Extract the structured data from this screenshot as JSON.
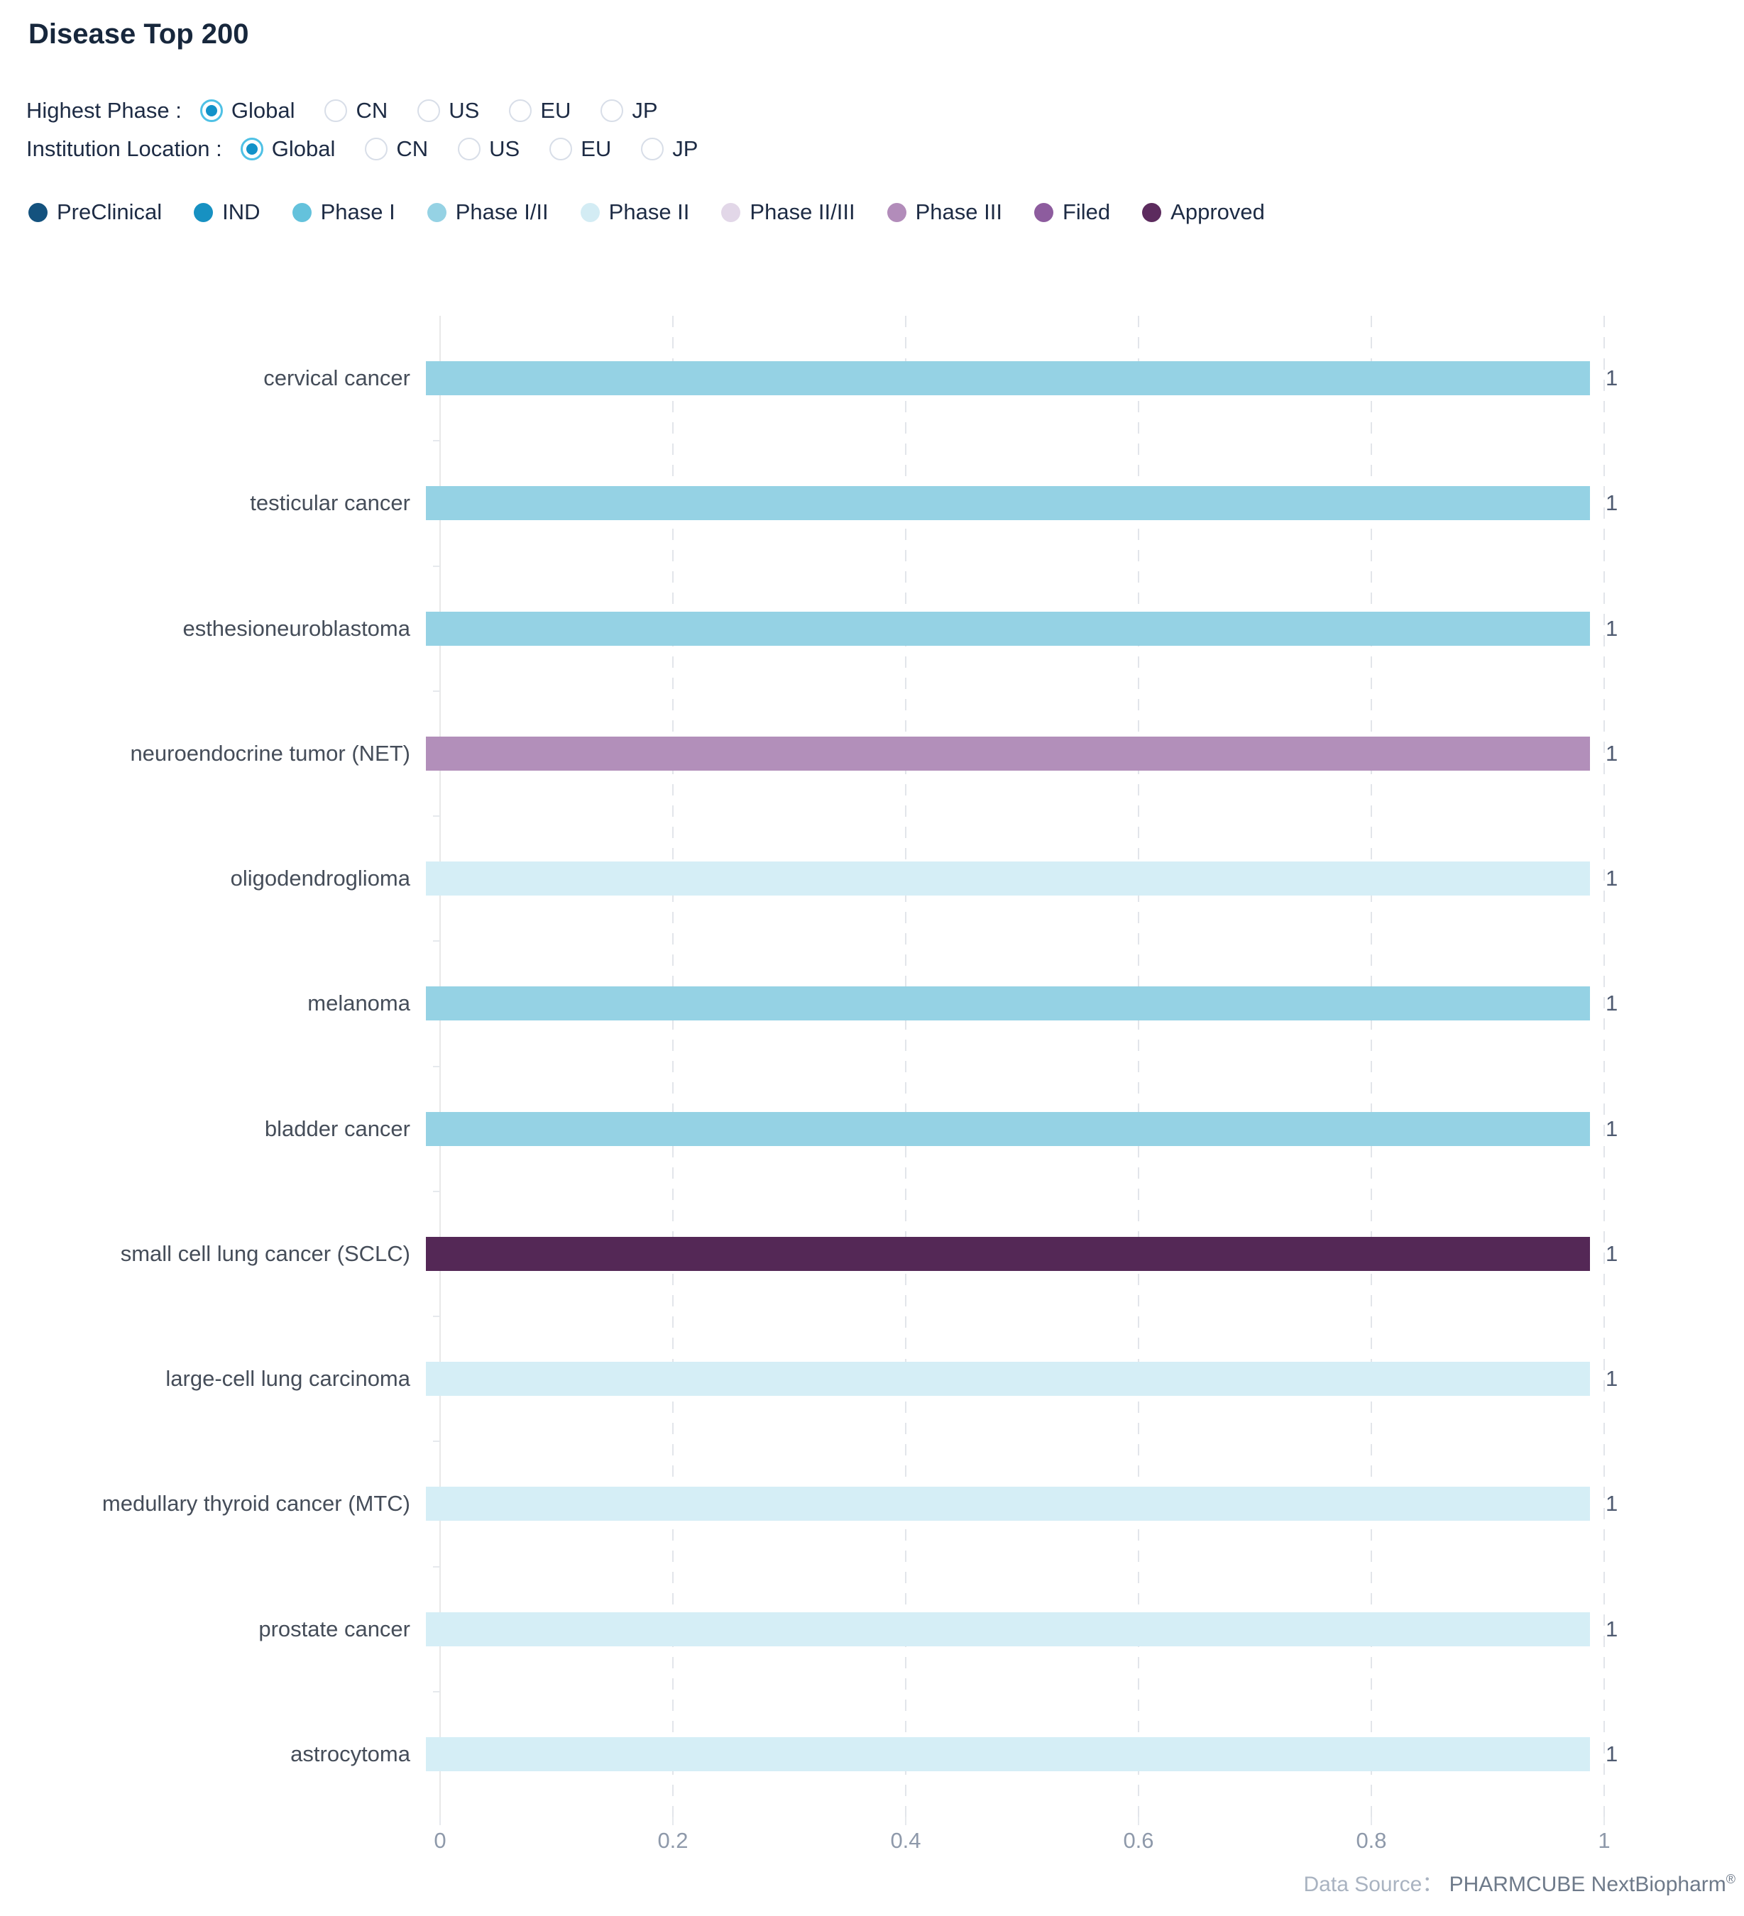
{
  "title": "Disease Top 200",
  "filters": [
    {
      "name": "highest-phase",
      "label": "Highest Phase :",
      "options": [
        {
          "label": "Global",
          "selected": true
        },
        {
          "label": "CN",
          "selected": false
        },
        {
          "label": "US",
          "selected": false
        },
        {
          "label": "EU",
          "selected": false
        },
        {
          "label": "JP",
          "selected": false
        }
      ]
    },
    {
      "name": "institution-location",
      "label": "Institution Location :",
      "options": [
        {
          "label": "Global",
          "selected": true
        },
        {
          "label": "CN",
          "selected": false
        },
        {
          "label": "US",
          "selected": false
        },
        {
          "label": "EU",
          "selected": false
        },
        {
          "label": "JP",
          "selected": false
        }
      ]
    }
  ],
  "legend": [
    {
      "label": "PreClinical",
      "color": "#14527e"
    },
    {
      "label": "IND",
      "color": "#1791c2"
    },
    {
      "label": "Phase I",
      "color": "#64c2dc"
    },
    {
      "label": "Phase I/II",
      "color": "#95d2e4"
    },
    {
      "label": "Phase II",
      "color": "#d3ecf4"
    },
    {
      "label": "Phase II/III",
      "color": "#e2d7e8"
    },
    {
      "label": "Phase III",
      "color": "#b28cba"
    },
    {
      "label": "Filed",
      "color": "#8d5c9e"
    },
    {
      "label": "Approved",
      "color": "#5c2b5e"
    }
  ],
  "chart_data": {
    "type": "bar",
    "orientation": "horizontal",
    "title": "Disease Top 200",
    "categories": [
      "cervical cancer",
      "testicular cancer",
      "esthesioneuroblastoma",
      "neuroendocrine tumor (NET)",
      "oligodendroglioma",
      "melanoma",
      "bladder cancer",
      "small cell lung cancer (SCLC)",
      "large-cell lung carcinoma",
      "medullary thyroid cancer (MTC)",
      "prostate cancer",
      "astrocytoma"
    ],
    "values": [
      1,
      1,
      1,
      1,
      1,
      1,
      1,
      1,
      1,
      1,
      1,
      1
    ],
    "phases": [
      "Phase I/II",
      "Phase I/II",
      "Phase I/II",
      "Phase III",
      "Phase II",
      "Phase I/II",
      "Phase I/II",
      "Approved",
      "Phase II",
      "Phase II",
      "Phase II",
      "Phase II"
    ],
    "bar_colors": [
      "#95d2e4",
      "#95d2e4",
      "#95d2e4",
      "#b28fba",
      "#d5eef6",
      "#95d2e4",
      "#95d2e4",
      "#542856",
      "#d5eef6",
      "#d5eef6",
      "#d5eef6",
      "#d5eef6"
    ],
    "value_labels": [
      "1",
      "1",
      "1",
      "1",
      "1",
      "1",
      "1",
      "1",
      "1",
      "1",
      "1",
      "1"
    ],
    "xlabel": "",
    "ylabel": "",
    "xlim": [
      0,
      1
    ],
    "x_ticks": [
      "0",
      "0.2",
      "0.4",
      "0.6",
      "0.8",
      "1"
    ],
    "grid": "dashed-vertical",
    "legend_position": "top"
  },
  "footer": {
    "data_source_label": "Data Source：",
    "data_source_value": "PHARMCUBE NextBiopharm",
    "registered_mark": "®"
  }
}
